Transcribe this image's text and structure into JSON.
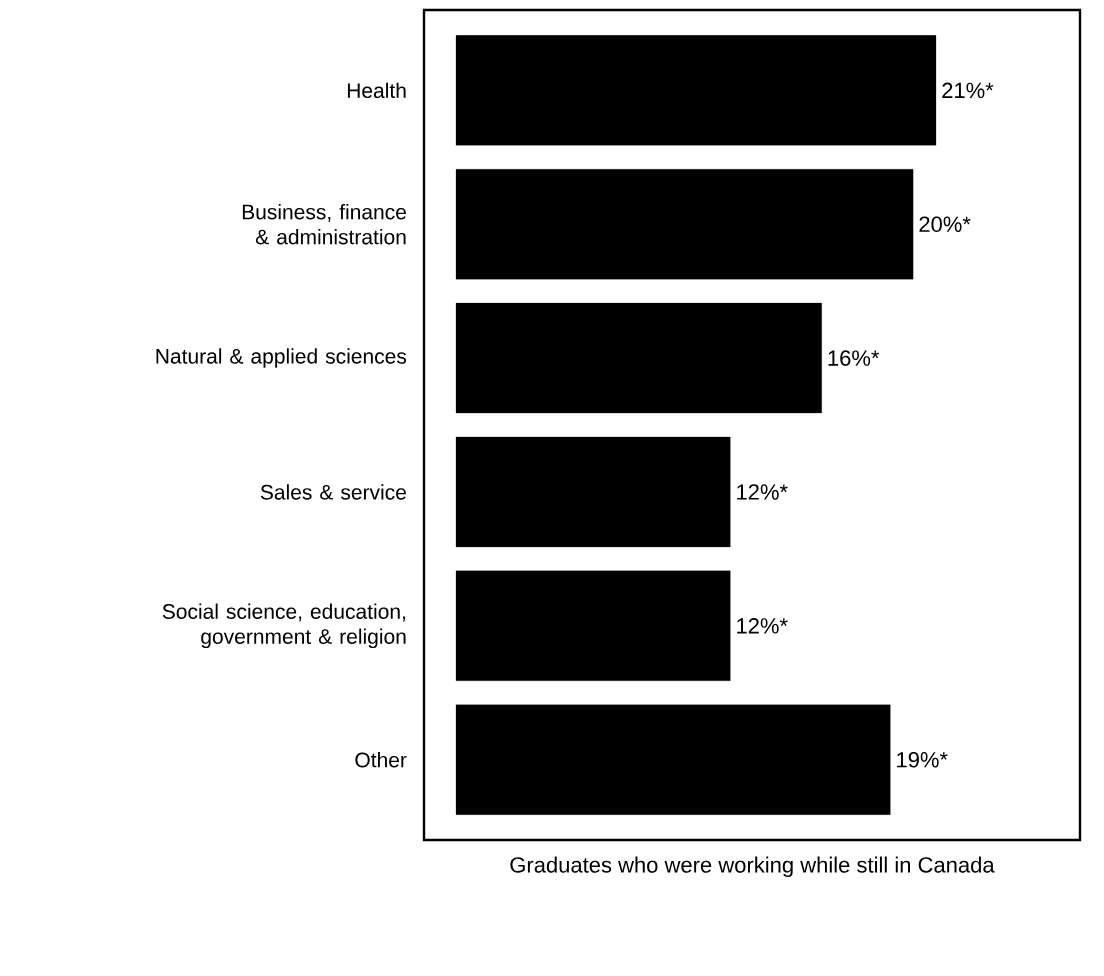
{
  "chart_data": {
    "type": "bar",
    "orientation": "horizontal",
    "xlabel": "Graduates who were working while still in Canada",
    "categories": [
      "Health",
      "Business, finance & administration",
      "Natural & applied sciences",
      "Sales & service",
      "Social science, education, government & religion",
      "Other"
    ],
    "values": [
      21,
      20,
      16,
      12,
      12,
      19
    ],
    "value_labels": [
      "21%*",
      "20%*",
      "16%*",
      "12%*",
      "12%*",
      "19%*"
    ],
    "color": "#000000",
    "xlim": [
      -1.4,
      27.3
    ],
    "tick_labels": "y"
  }
}
